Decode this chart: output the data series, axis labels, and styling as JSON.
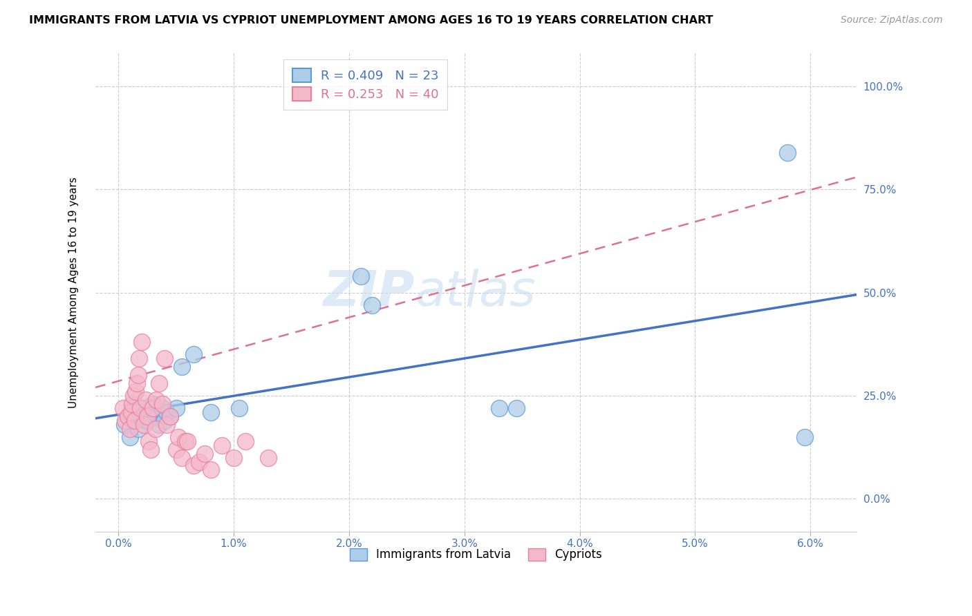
{
  "title": "IMMIGRANTS FROM LATVIA VS CYPRIOT UNEMPLOYMENT AMONG AGES 16 TO 19 YEARS CORRELATION CHART",
  "source": "Source: ZipAtlas.com",
  "ylabel": "Unemployment Among Ages 16 to 19 years",
  "x_tick_labels": [
    "0.0%",
    "1.0%",
    "2.0%",
    "3.0%",
    "4.0%",
    "5.0%",
    "6.0%"
  ],
  "x_tick_values": [
    0.0,
    1.0,
    2.0,
    3.0,
    4.0,
    5.0,
    6.0
  ],
  "y_tick_labels": [
    "0.0%",
    "25.0%",
    "50.0%",
    "75.0%",
    "100.0%"
  ],
  "y_tick_values": [
    0.0,
    25.0,
    50.0,
    75.0,
    100.0
  ],
  "xlim": [
    -0.2,
    6.4
  ],
  "ylim": [
    -8.0,
    108.0
  ],
  "legend_label1": "Immigrants from Latvia",
  "legend_label2": "Cypriots",
  "blue_color": "#aecde8",
  "blue_edge": "#5b9bd5",
  "blue_line": "#4472c4",
  "pink_color": "#f4b8cb",
  "pink_edge": "#e87fa0",
  "pink_line": "#e07090",
  "watermark": "ZIPatlas",
  "blue_scatter_x": [
    0.05,
    0.08,
    0.1,
    0.12,
    0.13,
    0.15,
    0.17,
    0.2,
    0.22,
    0.25,
    0.27,
    0.3,
    0.32,
    0.35,
    0.38,
    0.4,
    0.42,
    0.45,
    0.5,
    0.55,
    0.65,
    0.8,
    1.05,
    2.1,
    2.2,
    3.3,
    3.45,
    5.8,
    5.95
  ],
  "blue_scatter_y": [
    18,
    20,
    15,
    22,
    19,
    21,
    17,
    20,
    22,
    19,
    21,
    23,
    20,
    18,
    22,
    19,
    21,
    20,
    22,
    32,
    35,
    21,
    22,
    54,
    47,
    22,
    22,
    84,
    15
  ],
  "pink_scatter_x": [
    0.04,
    0.06,
    0.08,
    0.1,
    0.11,
    0.12,
    0.13,
    0.14,
    0.15,
    0.16,
    0.17,
    0.18,
    0.19,
    0.2,
    0.22,
    0.24,
    0.25,
    0.26,
    0.28,
    0.3,
    0.32,
    0.33,
    0.35,
    0.38,
    0.4,
    0.42,
    0.45,
    0.5,
    0.52,
    0.55,
    0.58,
    0.6,
    0.65,
    0.7,
    0.75,
    0.8,
    0.9,
    1.0,
    1.1,
    1.3
  ],
  "pink_scatter_y": [
    22,
    19,
    20,
    17,
    21,
    23,
    25,
    19,
    26,
    28,
    30,
    34,
    22,
    38,
    18,
    24,
    20,
    14,
    12,
    22,
    17,
    24,
    28,
    23,
    34,
    18,
    20,
    12,
    15,
    10,
    14,
    14,
    8,
    9,
    11,
    7,
    13,
    10,
    14,
    10
  ],
  "blue_trendline_x0": -0.2,
  "blue_trendline_x1": 6.4,
  "blue_trendline_y0": 19.5,
  "blue_trendline_y1": 49.5,
  "pink_trendline_x0": -0.2,
  "pink_trendline_x1": 6.4,
  "pink_trendline_y0": 27.0,
  "pink_trendline_y1": 78.0
}
